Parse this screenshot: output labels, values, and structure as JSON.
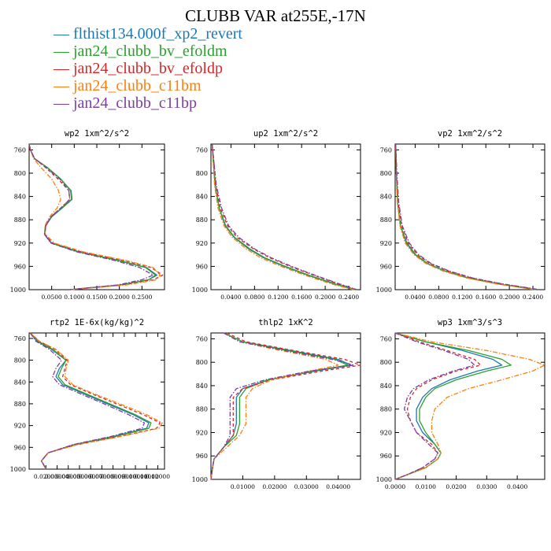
{
  "title": "CLUBB VAR at255E,-17N",
  "legend": [
    {
      "label": "flthist134.000f_xp2_revert",
      "color": "#1f77b4"
    },
    {
      "label": "jan24_clubb_bv_efoldm",
      "color": "#2ca02c"
    },
    {
      "label": "jan24_clubb_bv_efoldp",
      "color": "#d62728"
    },
    {
      "label": "jan24_clubb_c11bm",
      "color": "#ff7f0e"
    },
    {
      "label": "jan24_clubb_c11bp",
      "color": "#7b3f9e"
    }
  ],
  "chart_data": [
    {
      "type": "line",
      "title": "wp2  1xm^2/s^2",
      "xlim": [
        0,
        0.3
      ],
      "ylim": [
        1000,
        750
      ],
      "xticks": [
        0.05,
        0.1,
        0.15,
        0.2,
        0.25
      ],
      "xticklabels": [
        "0.0500",
        "0.1000",
        "0.1500",
        "0.2000",
        "0.2500"
      ],
      "yticks": [
        760,
        800,
        840,
        880,
        920,
        960,
        1000
      ],
      "y": [
        750,
        760,
        775,
        790,
        810,
        830,
        845,
        860,
        875,
        890,
        905,
        920,
        935,
        950,
        962,
        975,
        983,
        992,
        1000
      ],
      "series": [
        {
          "style": "solid",
          "values": [
            0.0,
            0.003,
            0.012,
            0.04,
            0.07,
            0.093,
            0.095,
            0.073,
            0.05,
            0.037,
            0.034,
            0.05,
            0.11,
            0.2,
            0.26,
            0.283,
            0.265,
            0.2,
            0.09
          ]
        },
        {
          "style": "solid",
          "values": [
            0.0,
            0.003,
            0.012,
            0.04,
            0.07,
            0.092,
            0.094,
            0.072,
            0.049,
            0.036,
            0.034,
            0.049,
            0.108,
            0.197,
            0.258,
            0.28,
            0.265,
            0.2,
            0.09
          ]
        },
        {
          "style": "dashed",
          "values": [
            0.0,
            0.003,
            0.012,
            0.036,
            0.064,
            0.088,
            0.09,
            0.07,
            0.048,
            0.037,
            0.035,
            0.052,
            0.115,
            0.21,
            0.27,
            0.296,
            0.275,
            0.205,
            0.09
          ]
        },
        {
          "style": "dashdot",
          "values": [
            0.0,
            0.003,
            0.01,
            0.026,
            0.05,
            0.065,
            0.07,
            0.062,
            0.045,
            0.035,
            0.036,
            0.056,
            0.12,
            0.215,
            0.275,
            0.29,
            0.282,
            0.215,
            0.09
          ]
        },
        {
          "style": "dashdot",
          "values": [
            0.0,
            0.003,
            0.012,
            0.037,
            0.068,
            0.088,
            0.09,
            0.07,
            0.048,
            0.037,
            0.034,
            0.048,
            0.105,
            0.19,
            0.245,
            0.275,
            0.25,
            0.195,
            0.09
          ]
        }
      ]
    },
    {
      "type": "line",
      "title": "up2  1xm^2/s^2",
      "xlim": [
        0.006,
        0.26
      ],
      "ylim": [
        1000,
        750
      ],
      "xticks": [
        0.04,
        0.08,
        0.12,
        0.16,
        0.2,
        0.24
      ],
      "xticklabels": [
        "0.0400",
        "0.0800",
        "0.1200",
        "0.1600",
        "0.2000",
        "0.2400"
      ],
      "yticks": [
        760,
        800,
        840,
        880,
        920,
        960,
        1000
      ],
      "y": [
        750,
        780,
        820,
        860,
        890,
        910,
        930,
        945,
        960,
        975,
        990,
        1000
      ],
      "series": [
        {
          "style": "solid",
          "values": [
            0.008,
            0.01,
            0.013,
            0.02,
            0.03,
            0.045,
            0.07,
            0.095,
            0.13,
            0.17,
            0.215,
            0.25
          ]
        },
        {
          "style": "solid",
          "values": [
            0.008,
            0.01,
            0.013,
            0.02,
            0.031,
            0.046,
            0.072,
            0.097,
            0.132,
            0.172,
            0.217,
            0.251
          ]
        },
        {
          "style": "dashed",
          "values": [
            0.008,
            0.011,
            0.014,
            0.022,
            0.034,
            0.05,
            0.078,
            0.105,
            0.14,
            0.18,
            0.222,
            0.253
          ]
        },
        {
          "style": "dashdot",
          "values": [
            0.008,
            0.01,
            0.012,
            0.018,
            0.028,
            0.042,
            0.066,
            0.09,
            0.125,
            0.165,
            0.21,
            0.248
          ]
        },
        {
          "style": "dashdot",
          "values": [
            0.008,
            0.011,
            0.015,
            0.024,
            0.036,
            0.053,
            0.08,
            0.108,
            0.143,
            0.182,
            0.224,
            0.254
          ]
        }
      ]
    },
    {
      "type": "line",
      "title": "vp2  1xm^2/s^2",
      "xlim": [
        0.006,
        0.26
      ],
      "ylim": [
        1000,
        750
      ],
      "xticks": [
        0.04,
        0.08,
        0.12,
        0.16,
        0.2,
        0.24
      ],
      "xticklabels": [
        "0.0400",
        "0.0800",
        "0.1200",
        "0.1600",
        "0.2000",
        "0.2400"
      ],
      "yticks": [
        760,
        800,
        840,
        880,
        920,
        960,
        1000
      ],
      "y": [
        750,
        800,
        850,
        890,
        920,
        940,
        955,
        968,
        980,
        990,
        1000
      ],
      "series": [
        {
          "style": "solid",
          "values": [
            0.007,
            0.008,
            0.01,
            0.015,
            0.025,
            0.04,
            0.06,
            0.09,
            0.13,
            0.18,
            0.245
          ]
        },
        {
          "style": "solid",
          "values": [
            0.007,
            0.008,
            0.01,
            0.015,
            0.026,
            0.041,
            0.061,
            0.091,
            0.131,
            0.181,
            0.246
          ]
        },
        {
          "style": "dashed",
          "values": [
            0.007,
            0.008,
            0.011,
            0.017,
            0.028,
            0.044,
            0.065,
            0.096,
            0.136,
            0.186,
            0.25
          ]
        },
        {
          "style": "dashdot",
          "values": [
            0.007,
            0.008,
            0.01,
            0.014,
            0.023,
            0.038,
            0.058,
            0.087,
            0.127,
            0.178,
            0.242
          ]
        },
        {
          "style": "dashdot",
          "values": [
            0.007,
            0.009,
            0.012,
            0.018,
            0.03,
            0.046,
            0.067,
            0.098,
            0.138,
            0.188,
            0.252
          ]
        }
      ]
    },
    {
      "type": "line",
      "title": "rtp2  1E-6x(kg/kg)^2",
      "xlim": [
        0.005,
        0.126
      ],
      "ylim": [
        1000,
        750
      ],
      "xticks": [
        0.02,
        0.03,
        0.04,
        0.05,
        0.06,
        0.07,
        0.08,
        0.09,
        0.1,
        0.11,
        0.12
      ],
      "xticklabels": [
        "0.02000",
        "0.03000",
        "0.04000",
        "0.05000",
        "0.06000",
        "0.07000",
        "0.08000",
        "0.09000",
        "0.10000",
        "0.11000",
        "0.12000"
      ],
      "yticks": [
        760,
        800,
        840,
        880,
        920,
        960,
        1000
      ],
      "y": [
        750,
        765,
        780,
        800,
        815,
        830,
        845,
        860,
        880,
        900,
        915,
        925,
        940,
        955,
        970,
        985,
        992,
        1000
      ],
      "series": [
        {
          "style": "solid",
          "values": [
            0.006,
            0.012,
            0.025,
            0.038,
            0.032,
            0.029,
            0.035,
            0.052,
            0.075,
            0.098,
            0.112,
            0.11,
            0.08,
            0.045,
            0.022,
            0.016,
            0.018,
            0.02
          ]
        },
        {
          "style": "solid",
          "values": [
            0.006,
            0.013,
            0.026,
            0.038,
            0.034,
            0.031,
            0.037,
            0.054,
            0.077,
            0.1,
            0.114,
            0.112,
            0.082,
            0.046,
            0.022,
            0.016,
            0.018,
            0.02
          ]
        },
        {
          "style": "dashed",
          "values": [
            0.006,
            0.014,
            0.028,
            0.039,
            0.037,
            0.035,
            0.042,
            0.059,
            0.083,
            0.107,
            0.122,
            0.119,
            0.086,
            0.048,
            0.022,
            0.016,
            0.018,
            0.02
          ]
        },
        {
          "style": "dashdot",
          "values": [
            0.006,
            0.014,
            0.029,
            0.04,
            0.038,
            0.037,
            0.044,
            0.061,
            0.086,
            0.11,
            0.124,
            0.121,
            0.087,
            0.048,
            0.022,
            0.016,
            0.018,
            0.02
          ]
        },
        {
          "style": "dashdot",
          "values": [
            0.006,
            0.011,
            0.023,
            0.034,
            0.029,
            0.026,
            0.032,
            0.049,
            0.072,
            0.094,
            0.108,
            0.106,
            0.078,
            0.044,
            0.022,
            0.016,
            0.018,
            0.02
          ]
        }
      ]
    },
    {
      "type": "line",
      "title": "thlp2  1xK^2",
      "xlim": [
        0.0,
        0.047
      ],
      "ylim": [
        1000,
        750
      ],
      "xticks": [
        0.01,
        0.02,
        0.03,
        0.04
      ],
      "xticklabels": [
        "0.01000",
        "0.02000",
        "0.03000",
        "0.04000"
      ],
      "yticks": [
        760,
        800,
        840,
        880,
        920,
        960,
        1000
      ],
      "y": [
        750,
        765,
        780,
        795,
        805,
        815,
        830,
        845,
        860,
        880,
        905,
        925,
        945,
        965,
        980,
        1000
      ],
      "series": [
        {
          "style": "solid",
          "values": [
            0.004,
            0.01,
            0.025,
            0.04,
            0.044,
            0.033,
            0.018,
            0.01,
            0.008,
            0.008,
            0.008,
            0.007,
            0.004,
            0.001,
            0.0005,
            0.0
          ]
        },
        {
          "style": "solid",
          "values": [
            0.004,
            0.01,
            0.024,
            0.039,
            0.043,
            0.032,
            0.018,
            0.011,
            0.009,
            0.009,
            0.009,
            0.008,
            0.004,
            0.001,
            0.0005,
            0.0
          ]
        },
        {
          "style": "dashed",
          "values": [
            0.005,
            0.011,
            0.026,
            0.042,
            0.047,
            0.035,
            0.019,
            0.01,
            0.007,
            0.007,
            0.007,
            0.007,
            0.004,
            0.001,
            0.0005,
            0.0
          ]
        },
        {
          "style": "dashdot",
          "values": [
            0.004,
            0.009,
            0.022,
            0.036,
            0.04,
            0.031,
            0.019,
            0.013,
            0.011,
            0.011,
            0.011,
            0.009,
            0.005,
            0.001,
            0.0005,
            0.0
          ]
        },
        {
          "style": "dashdot",
          "values": [
            0.004,
            0.009,
            0.023,
            0.038,
            0.045,
            0.031,
            0.017,
            0.008,
            0.006,
            0.006,
            0.006,
            0.006,
            0.004,
            0.001,
            0.0005,
            0.0
          ]
        }
      ]
    },
    {
      "type": "line",
      "title": "wp3  1xm^3/s^3",
      "xlim": [
        0.0,
        0.049
      ],
      "ylim": [
        1000,
        750
      ],
      "xticks": [
        0.0,
        0.01,
        0.02,
        0.03,
        0.04
      ],
      "xticklabels": [
        "0.0000",
        "0.0100",
        "0.0200",
        "0.0300",
        "0.0400"
      ],
      "yticks": [
        760,
        800,
        840,
        880,
        920,
        960,
        1000
      ],
      "y": [
        750,
        765,
        780,
        795,
        805,
        815,
        830,
        845,
        860,
        880,
        900,
        920,
        940,
        955,
        965,
        980,
        992,
        1000
      ],
      "series": [
        {
          "style": "solid",
          "values": [
            0.0,
            0.01,
            0.022,
            0.032,
            0.035,
            0.027,
            0.018,
            0.012,
            0.009,
            0.007,
            0.007,
            0.009,
            0.013,
            0.015,
            0.014,
            0.01,
            0.004,
            0.0
          ]
        },
        {
          "style": "solid",
          "values": [
            0.0,
            0.01,
            0.024,
            0.035,
            0.038,
            0.03,
            0.02,
            0.013,
            0.01,
            0.008,
            0.008,
            0.01,
            0.013,
            0.015,
            0.014,
            0.01,
            0.004,
            0.0
          ]
        },
        {
          "style": "dashed",
          "values": [
            0.0,
            0.008,
            0.017,
            0.026,
            0.028,
            0.02,
            0.012,
            0.007,
            0.005,
            0.004,
            0.005,
            0.007,
            0.012,
            0.014,
            0.013,
            0.009,
            0.004,
            0.0
          ]
        },
        {
          "style": "dashdot",
          "values": [
            0.0,
            0.012,
            0.03,
            0.044,
            0.049,
            0.045,
            0.035,
            0.024,
            0.017,
            0.013,
            0.012,
            0.012,
            0.014,
            0.015,
            0.014,
            0.01,
            0.004,
            0.0
          ]
        },
        {
          "style": "dashdot",
          "values": [
            0.0,
            0.007,
            0.016,
            0.024,
            0.026,
            0.019,
            0.011,
            0.006,
            0.004,
            0.003,
            0.005,
            0.007,
            0.011,
            0.014,
            0.013,
            0.009,
            0.004,
            0.0
          ]
        }
      ]
    }
  ]
}
